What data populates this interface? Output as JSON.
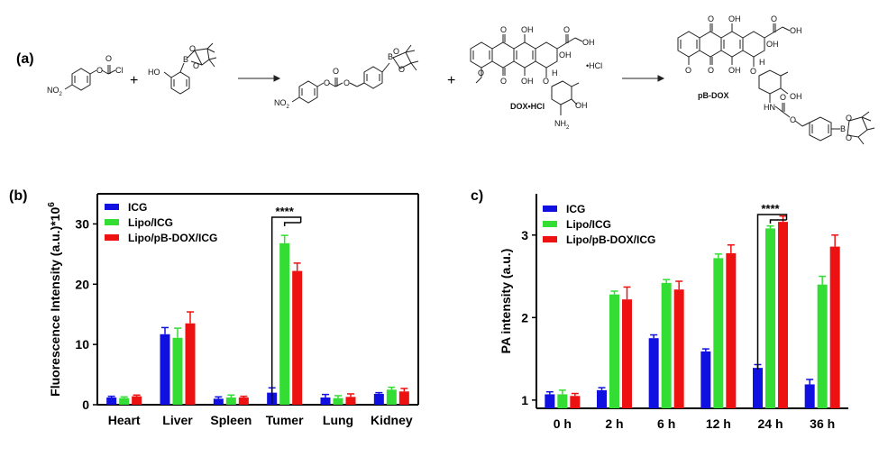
{
  "panel_labels": {
    "a": "(a)",
    "b": "(b)",
    "c": "c)"
  },
  "scheme": {
    "plus_1": "+",
    "plus_2": "+",
    "dox_hcl_label": "DOX•HCl",
    "pb_dox_label": "pB-DOX",
    "hcl_salt": "•HCl",
    "atoms": {
      "no2": "NO",
      "no2_sub": "2",
      "o": "O",
      "cl": "Cl",
      "ho": "HO",
      "b": "B",
      "oh": "OH",
      "h": "H",
      "nh2": "NH",
      "nh2_sub": "2",
      "hn": "HN"
    }
  },
  "colors": {
    "ICG": "#1010e0",
    "Lipo/ICG": "#33dd33",
    "Lipo/pB-DOX/ICG": "#ee1111"
  },
  "chart_data": [
    {
      "type": "bar",
      "categories": [
        "Heart",
        "Liver",
        "Spleen",
        "Tumer",
        "Lung",
        "Kidney"
      ],
      "series": [
        {
          "name": "ICG",
          "values": [
            1.2,
            11.7,
            1.0,
            2.0,
            1.2,
            1.8
          ],
          "errors": [
            0.2,
            1.1,
            0.3,
            0.8,
            0.5,
            0.2
          ]
        },
        {
          "name": "Lipo/ICG",
          "values": [
            1.1,
            11.1,
            1.2,
            26.8,
            1.1,
            2.5
          ],
          "errors": [
            0.2,
            1.6,
            0.4,
            1.3,
            0.4,
            0.4
          ]
        },
        {
          "name": "Lipo/pB-DOX/ICG",
          "values": [
            1.4,
            13.5,
            1.2,
            22.2,
            1.3,
            2.2
          ],
          "errors": [
            0.2,
            1.9,
            0.2,
            1.3,
            0.5,
            0.5
          ]
        }
      ],
      "ylabel": "Fluorescence Intensity  (a.u.)*10",
      "ylabel_sup": "6",
      "ylim": [
        0,
        35
      ],
      "yticks": [
        "0",
        "10",
        "20",
        "30"
      ],
      "ytick_values": [
        0,
        10,
        20,
        30
      ],
      "significance": "****",
      "legend_position": "top-left",
      "grid": false
    },
    {
      "type": "bar",
      "categories": [
        "0 h",
        "2 h",
        "6 h",
        "12 h",
        "24 h",
        "36 h"
      ],
      "series": [
        {
          "name": "ICG",
          "values": [
            1.07,
            1.12,
            1.75,
            1.59,
            1.39,
            1.19
          ],
          "errors": [
            0.03,
            0.03,
            0.04,
            0.03,
            0.04,
            0.06
          ]
        },
        {
          "name": "Lipo/ICG",
          "values": [
            1.07,
            2.28,
            2.42,
            2.72,
            3.08,
            2.4
          ],
          "errors": [
            0.05,
            0.04,
            0.04,
            0.05,
            0.03,
            0.1
          ]
        },
        {
          "name": "Lipo/pB-DOX/ICG",
          "values": [
            1.05,
            2.22,
            2.34,
            2.78,
            3.16,
            2.86
          ],
          "errors": [
            0.03,
            0.15,
            0.1,
            0.1,
            0.07,
            0.14
          ]
        }
      ],
      "ylabel": "PA intensity (a.u.)",
      "ylim": [
        0.9,
        3.5
      ],
      "yticks": [
        "1",
        "2",
        "3"
      ],
      "ytick_values": [
        1,
        2,
        3
      ],
      "significance": "****",
      "legend_position": "top-left",
      "grid": false
    }
  ]
}
